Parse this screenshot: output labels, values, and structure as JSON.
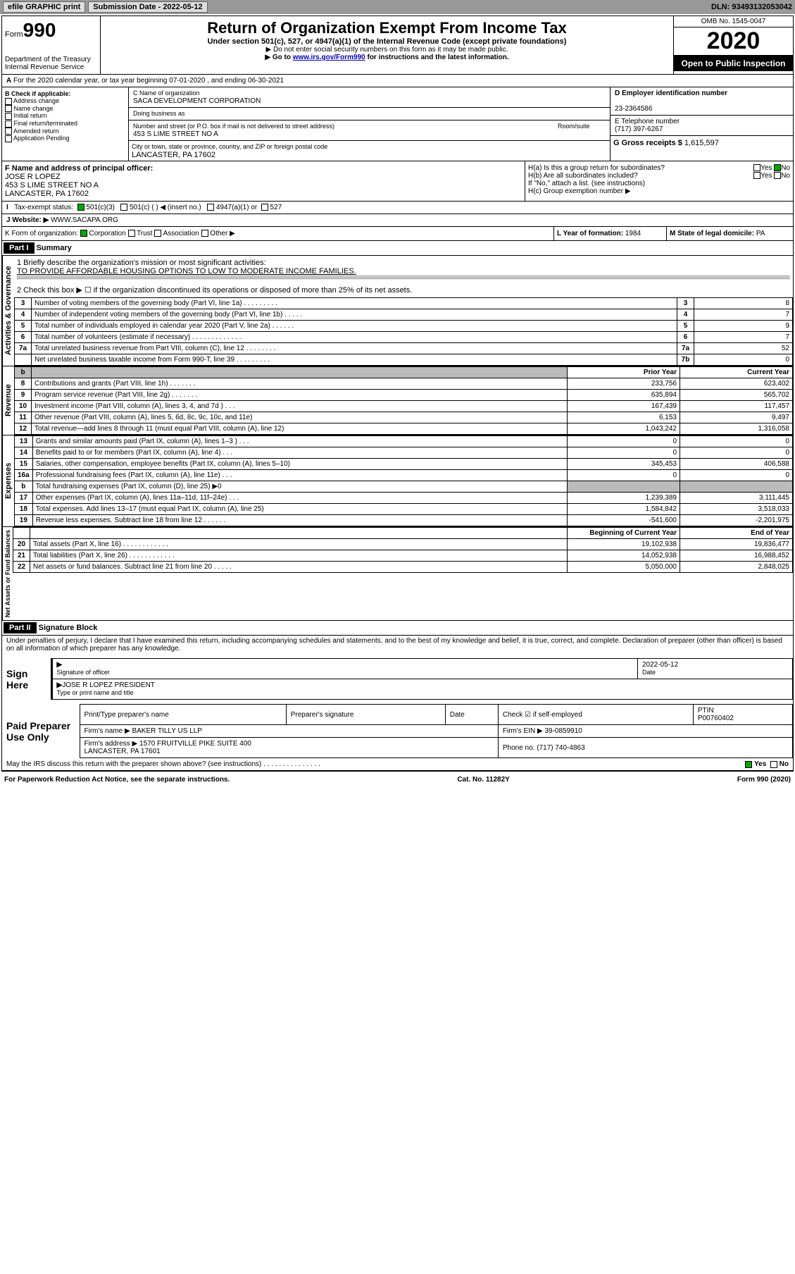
{
  "topbar": {
    "efile": "efile GRAPHIC print",
    "submission": "Submission Date - 2022-05-12",
    "dln": "DLN: 93493132053042"
  },
  "header": {
    "form_label": "Form",
    "form_no": "990",
    "dept": "Department of the Treasury\nInternal Revenue Service",
    "title": "Return of Organization Exempt From Income Tax",
    "sub": "Under section 501(c), 527, or 4947(a)(1) of the Internal Revenue Code (except private foundations)",
    "note1": "▶ Do not enter social security numbers on this form as it may be made public.",
    "note2": "▶ Go to www.irs.gov/Form990 for instructions and the latest information.",
    "omb": "OMB No. 1545-0047",
    "year": "2020",
    "insp": "Open to Public Inspection"
  },
  "lineA": "For the 2020 calendar year, or tax year beginning 07-01-2020   , and ending 06-30-2021",
  "boxB": {
    "label": "B Check if applicable:",
    "items": [
      "Address change",
      "Name change",
      "Initial return",
      "Final return/terminated",
      "Amended return",
      "Application Pending"
    ]
  },
  "boxC": {
    "label": "C Name of organization",
    "name": "SACA DEVELOPMENT CORPORATION",
    "dba": "Doing business as",
    "street_label": "Number and street (or P.O. box if mail is not delivered to street address)",
    "room": "Room/suite",
    "street": "453 S LIME STREET NO A",
    "city_label": "City or town, state or province, country, and ZIP or foreign postal code",
    "city": "LANCASTER, PA  17602"
  },
  "boxD": {
    "label": "D Employer identification number",
    "ein": "23-2364586"
  },
  "boxE": {
    "label": "E Telephone number",
    "phone": "(717) 397-6267"
  },
  "boxG": {
    "label": "G Gross receipts $",
    "amt": "1,615,597"
  },
  "boxF": {
    "label": "F  Name and address of principal officer:",
    "name": "JOSE R LOPEZ",
    "addr1": "453 S LIME STREET NO A",
    "addr2": "LANCASTER, PA  17602"
  },
  "boxH": {
    "a": "H(a)  Is this a group return for subordinates?",
    "b": "H(b)  Are all subordinates included?",
    "b2": "If \"No,\" attach a list. (see instructions)",
    "c": "H(c)  Group exemption number ▶"
  },
  "taxexempt": {
    "label": "Tax-exempt status:",
    "c3": "501(c)(3)",
    "c": "501(c) (  ) ◀ (insert no.)",
    "a1": "4947(a)(1) or",
    "s527": "527"
  },
  "website": {
    "label": "J   Website: ▶",
    "val": "  WWW.SACAPA.ORG"
  },
  "lineK": {
    "label": "K Form of organization:",
    "corp": "Corporation",
    "trust": "Trust",
    "assoc": "Association",
    "other": "Other ▶"
  },
  "lineL": {
    "label": "L Year of formation:",
    "val": "1984"
  },
  "lineM": {
    "label": "M State of legal domicile:",
    "val": "PA"
  },
  "part1": {
    "title": "Part I",
    "sub": "Summary",
    "side": "Activities & Governance",
    "q1": "1   Briefly describe the organization's mission or most significant activities:",
    "mission": "TO PROVIDE AFFORDABLE HOUSING OPTIONS TO LOW TO MODERATE INCOME FAMILIES.",
    "q2": "2   Check this box ▶ ☐  if the organization discontinued its operations or disposed of more than 25% of its net assets.",
    "rows": [
      {
        "n": "3",
        "txt": "Number of voting members of the governing body (Part VI, line 1a)  .   .   .   .   .   .   .   .   .",
        "r": "3",
        "v": "8"
      },
      {
        "n": "4",
        "txt": "Number of independent voting members of the governing body (Part VI, line 1b)  .   .   .   .   .",
        "r": "4",
        "v": "7"
      },
      {
        "n": "5",
        "txt": "Total number of individuals employed in calendar year 2020 (Part V, line 2a)  .   .   .   .   .   .",
        "r": "5",
        "v": "9"
      },
      {
        "n": "6",
        "txt": "Total number of volunteers (estimate if necessary)  .   .   .   .   .   .   .   .   .   .   .   .   .",
        "r": "6",
        "v": "7"
      },
      {
        "n": "7a",
        "txt": "Total unrelated business revenue from Part VIII, column (C), line 12  .   .   .   .   .   .   .   .",
        "r": "7a",
        "v": "52"
      },
      {
        "n": "",
        "txt": "Net unrelated business taxable income from Form 990-T, line 39  .   .   .   .   .   .   .   .   .",
        "r": "7b",
        "v": "0"
      }
    ]
  },
  "rev": {
    "side": "Revenue",
    "hdr_prior": "Prior Year",
    "hdr_curr": "Current Year",
    "rows": [
      {
        "n": "8",
        "txt": "Contributions and grants (Part VIII, line 1h)  .   .   .   .   .   .   .",
        "p": "233,756",
        "c": "623,402"
      },
      {
        "n": "9",
        "txt": "Program service revenue (Part VIII, line 2g)  .   .   .   .   .   .   .",
        "p": "635,894",
        "c": "565,702"
      },
      {
        "n": "10",
        "txt": "Investment income (Part VIII, column (A), lines 3, 4, and 7d )  .   .   .",
        "p": "167,439",
        "c": "117,457"
      },
      {
        "n": "11",
        "txt": "Other revenue (Part VIII, column (A), lines 5, 6d, 8c, 9c, 10c, and 11e)",
        "p": "6,153",
        "c": "9,497"
      },
      {
        "n": "12",
        "txt": "Total revenue—add lines 8 through 11 (must equal Part VIII, column (A), line 12)",
        "p": "1,043,242",
        "c": "1,316,058"
      }
    ]
  },
  "exp": {
    "side": "Expenses",
    "rows": [
      {
        "n": "13",
        "txt": "Grants and similar amounts paid (Part IX, column (A), lines 1–3 )  .   .   .",
        "p": "0",
        "c": "0"
      },
      {
        "n": "14",
        "txt": "Benefits paid to or for members (Part IX, column (A), line 4)  .   .   .",
        "p": "0",
        "c": "0"
      },
      {
        "n": "15",
        "txt": "Salaries, other compensation, employee benefits (Part IX, column (A), lines 5–10)",
        "p": "345,453",
        "c": "406,588"
      },
      {
        "n": "16a",
        "txt": "Professional fundraising fees (Part IX, column (A), line 11e)  .   .   .",
        "p": "0",
        "c": "0"
      },
      {
        "n": "b",
        "txt": "Total fundraising expenses (Part IX, column (D), line 25) ▶0",
        "p": "",
        "c": "",
        "grey": true
      },
      {
        "n": "17",
        "txt": "Other expenses (Part IX, column (A), lines 11a–11d, 11f–24e)  .   .   .",
        "p": "1,239,389",
        "c": "3,111,445"
      },
      {
        "n": "18",
        "txt": "Total expenses. Add lines 13–17 (must equal Part IX, column (A), line 25)",
        "p": "1,584,842",
        "c": "3,518,033"
      },
      {
        "n": "19",
        "txt": "Revenue less expenses. Subtract line 18 from line 12  .   .   .   .   .   .",
        "p": "-541,600",
        "c": "-2,201,975"
      }
    ]
  },
  "net": {
    "side": "Net Assets or Fund Balances",
    "hdr_beg": "Beginning of Current Year",
    "hdr_end": "End of Year",
    "rows": [
      {
        "n": "20",
        "txt": "Total assets (Part X, line 16)  .   .   .   .   .   .   .   .   .   .   .   .",
        "p": "19,102,938",
        "c": "19,836,477"
      },
      {
        "n": "21",
        "txt": "Total liabilities (Part X, line 26)  .   .   .   .   .   .   .   .   .   .   .   .",
        "p": "14,052,938",
        "c": "16,988,452"
      },
      {
        "n": "22",
        "txt": "Net assets or fund balances. Subtract line 21 from line 20  .   .   .   .   .",
        "p": "5,050,000",
        "c": "2,848,025"
      }
    ]
  },
  "part2": {
    "title": "Part II",
    "sub": "Signature Block",
    "decl": "Under penalties of perjury, I declare that I have examined this return, including accompanying schedules and statements, and to the best of my knowledge and belief, it is true, correct, and complete. Declaration of preparer (other than officer) is based on all information of which preparer has any knowledge."
  },
  "sign": {
    "here": "Sign Here",
    "sig_label": "Signature of officer",
    "date_label": "Date",
    "date": "2022-05-12",
    "name": "JOSE R LOPEZ PRESIDENT",
    "name_label": "Type or print name and title"
  },
  "paid": {
    "here": "Paid Preparer Use Only",
    "c1": "Print/Type preparer's name",
    "c2": "Preparer's signature",
    "c3": "Date",
    "c4": "Check ☑ if self-employed",
    "c5": "PTIN",
    "ptin": "P00760402",
    "firm_label": "Firm's name   ▶",
    "firm": "BAKER TILLY US LLP",
    "ein_label": "Firm's EIN ▶",
    "ein": "39-0859910",
    "addr_label": "Firm's address ▶",
    "addr": "1570 FRUITVILLE PIKE SUITE 400\nLANCASTER, PA  17601",
    "phone_label": "Phone no.",
    "phone": "(717) 740-4863",
    "irs": "May the IRS discuss this return with the preparer shown above? (see instructions)  .   .   .   .   .   .   .   .   .   .   .   .   .   .   .",
    "yes": "Yes",
    "no": "No"
  },
  "footer": {
    "pra": "For Paperwork Reduction Act Notice, see the separate instructions.",
    "cat": "Cat. No. 11282Y",
    "form": "Form 990 (2020)"
  }
}
